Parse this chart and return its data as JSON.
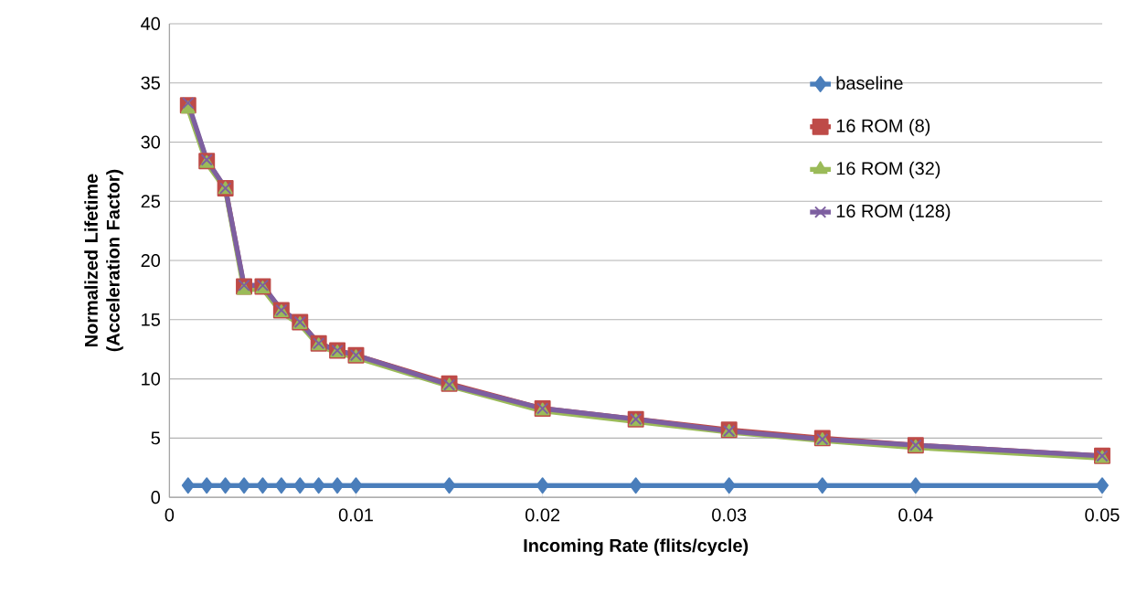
{
  "chart_data": {
    "type": "line",
    "xlabel": "Incoming Rate (flits/cycle)",
    "ylabel": "Normalized Lifetime (Acceleration Factor)",
    "x": [
      0.001,
      0.002,
      0.003,
      0.004,
      0.005,
      0.006,
      0.007,
      0.008,
      0.009,
      0.01,
      0.015,
      0.02,
      0.025,
      0.03,
      0.035,
      0.04,
      0.05
    ],
    "series": [
      {
        "name": "baseline",
        "color": "#4a7ebb",
        "marker": "diamond",
        "values": [
          1,
          1,
          1,
          1,
          1,
          1,
          1,
          1,
          1,
          1,
          1,
          1,
          1,
          1,
          1,
          1,
          1
        ]
      },
      {
        "name": "16 ROM (8)",
        "color": "#be4b48",
        "marker": "square",
        "values": [
          33.1,
          28.4,
          26.1,
          17.8,
          17.8,
          15.8,
          14.8,
          13.0,
          12.4,
          12.0,
          9.6,
          7.5,
          6.6,
          5.7,
          5.0,
          4.4,
          3.5
        ]
      },
      {
        "name": "16 ROM (32)",
        "color": "#9bbb59",
        "marker": "triangle",
        "values": [
          32.8,
          28.2,
          26.0,
          17.5,
          17.6,
          15.6,
          14.6,
          12.8,
          12.2,
          11.8,
          9.4,
          7.3,
          6.4,
          5.5,
          4.8,
          4.2,
          3.3
        ]
      },
      {
        "name": "16 ROM (128)",
        "color": "#7d5fa0",
        "marker": "cross",
        "values": [
          33.3,
          28.5,
          26.1,
          17.9,
          17.9,
          15.8,
          14.8,
          13.0,
          12.4,
          12.0,
          9.5,
          7.5,
          6.6,
          5.6,
          4.9,
          4.4,
          3.5
        ]
      }
    ],
    "xlim": [
      0,
      0.05
    ],
    "ylim": [
      0,
      40
    ],
    "xticks": [
      0,
      0.01,
      0.02,
      0.03,
      0.04,
      0.05
    ],
    "yticks": [
      0,
      5,
      10,
      15,
      20,
      25,
      30,
      35,
      40
    ],
    "grid": "y",
    "legend": "right"
  }
}
